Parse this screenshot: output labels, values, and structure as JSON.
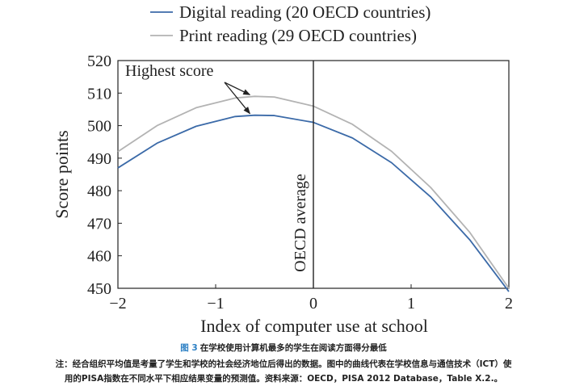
{
  "chart_data": {
    "type": "line",
    "xlabel": "Index of computer use at school",
    "ylabel": "Score points",
    "xlim": [
      -2,
      2
    ],
    "ylim": [
      450,
      520
    ],
    "xticks": [
      -2,
      -1,
      0,
      1,
      2
    ],
    "xtick_labels": [
      "−2",
      "−1",
      "0",
      "1",
      "2"
    ],
    "yticks": [
      450,
      460,
      470,
      480,
      490,
      500,
      510,
      520
    ],
    "legend_position": "top",
    "series": [
      {
        "name": "Digital reading (20 OECD countries)",
        "color": "#3b6aa8",
        "x": [
          -2,
          -1.6,
          -1.2,
          -0.8,
          -0.6,
          -0.4,
          0,
          0.4,
          0.8,
          1.2,
          1.6,
          2
        ],
        "y": [
          487,
          494.6,
          499.8,
          502.8,
          503.2,
          503.1,
          501.0,
          496.2,
          488.6,
          478.1,
          464.9,
          449.0
        ]
      },
      {
        "name": "Print reading (29 OECD countries)",
        "color": "#b3b3b3",
        "x": [
          -2,
          -1.6,
          -1.2,
          -0.8,
          -0.6,
          -0.4,
          0,
          0.4,
          0.8,
          1.2,
          1.6,
          2
        ],
        "y": [
          492,
          500.0,
          505.5,
          508.5,
          509.0,
          508.8,
          506.0,
          500.4,
          492.1,
          481.0,
          467.2,
          450.0
        ]
      }
    ],
    "reference_line": {
      "x": 0,
      "label": "OECD average"
    },
    "annotation": {
      "text": "Highest score",
      "targets": [
        [
          -0.6,
          509.0
        ],
        [
          -0.6,
          503.2
        ]
      ]
    }
  },
  "caption": {
    "fig_label": "图 3",
    "title": "在学校使用计算机最多的学生在阅读方面得分最低",
    "note_line1": "注：经合组织平均值是考量了学生和学校的社会经济地位后得出的数据。图中的曲线代表在学校信息与通信技术（ICT）使",
    "note_line2": "用的PISA指数在不同水平下相应结果变量的预测值。资料来源：OECD，PISA 2012 Database，Table X.2.。"
  }
}
